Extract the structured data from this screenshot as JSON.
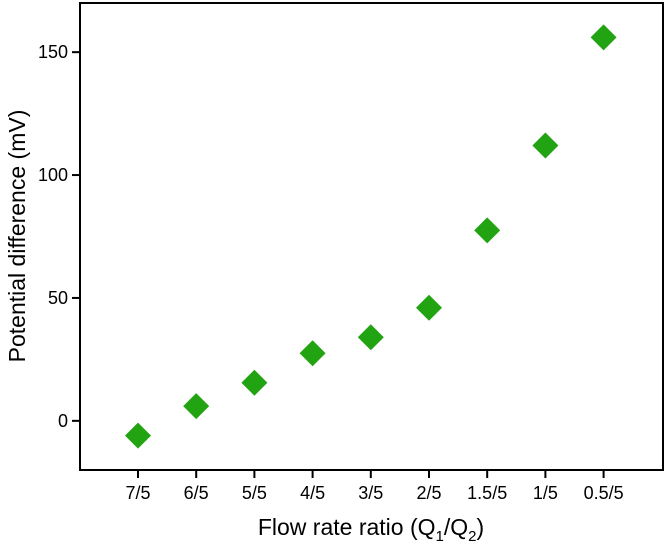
{
  "chart_data": {
    "type": "scatter",
    "xlabel": {
      "prefix": "Flow rate ratio (Q",
      "sub1": "1",
      "middle": "/Q",
      "sub2": "2",
      "suffix": ")"
    },
    "ylabel": "Potential difference (mV)",
    "categories": [
      "7/5",
      "6/5",
      "5/5",
      "4/5",
      "3/5",
      "2/5",
      "1.5/5",
      "1/5",
      "0.5/5"
    ],
    "values": [
      -6,
      6,
      15.5,
      27.5,
      34,
      46,
      77.5,
      112,
      156
    ],
    "ylim": [
      -20,
      170
    ],
    "yticks": [
      0,
      50,
      100,
      150
    ],
    "marker": "diamond",
    "color": "#22a311",
    "grid": false
  }
}
